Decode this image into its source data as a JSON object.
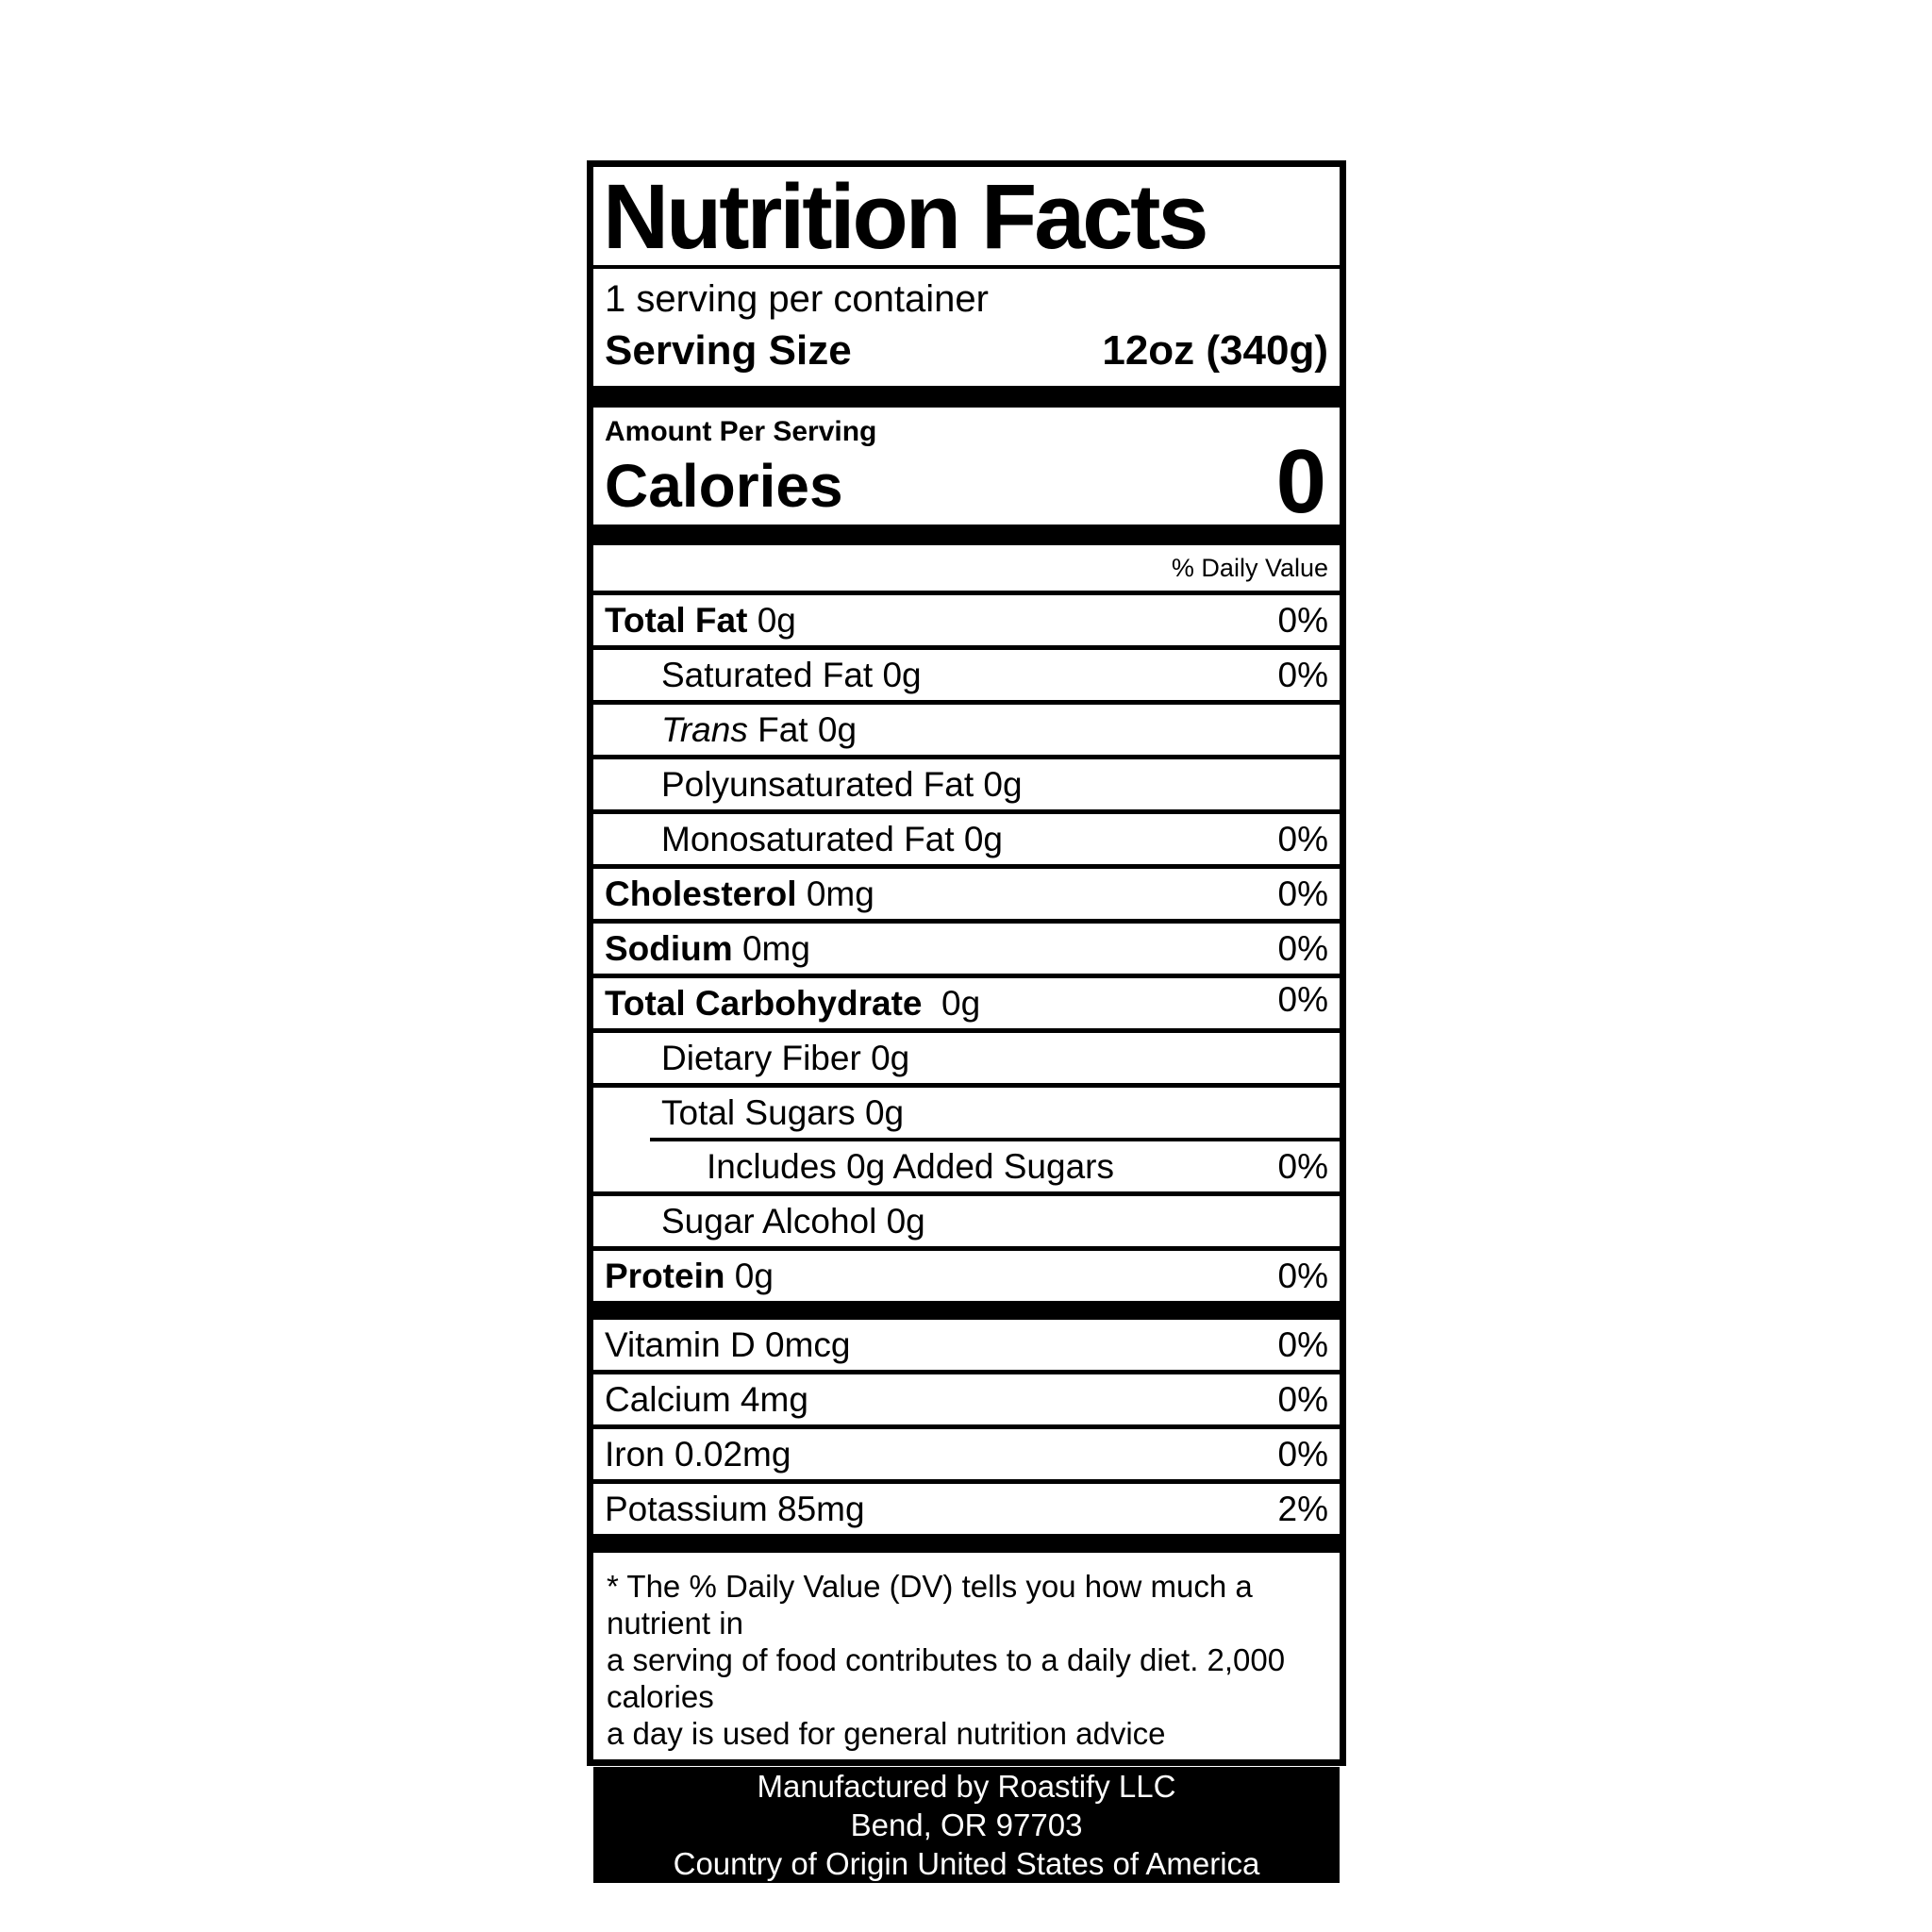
{
  "label": {
    "title": "Nutrition Facts",
    "servings_per_container": "1 serving per container",
    "serving_size_label": "Serving Size",
    "serving_size_value": "12oz (340g)",
    "amount_per_serving": "Amount Per Serving",
    "calories_label": "Calories",
    "calories_value": "0",
    "daily_value_header": "% Daily Value",
    "rows": [
      {
        "name": "Total Fat",
        "amount": "0g",
        "dv": "0%"
      },
      {
        "name": "Saturated Fat",
        "amount": "0g",
        "dv": "0%"
      },
      {
        "name": "Trans",
        "rest": "Fat",
        "amount": "0g",
        "dv": ""
      },
      {
        "name": "Polyunsaturated Fat",
        "amount": "0g",
        "dv": ""
      },
      {
        "name": "Monosaturated Fat",
        "amount": "0g",
        "dv": "0%"
      },
      {
        "name": "Cholesterol",
        "amount": "0mg",
        "dv": "0%"
      },
      {
        "name": "Sodium",
        "amount": "0mg",
        "dv": "0%"
      },
      {
        "name": "Total Carbohydrate",
        "amount": "0g",
        "dv": "0%"
      },
      {
        "name": "Dietary Fiber",
        "amount": "0g",
        "dv": ""
      },
      {
        "name": "Total Sugars",
        "amount": "0g",
        "dv": ""
      },
      {
        "name": "Includes 0g Added Sugars",
        "amount": "",
        "dv": "0%"
      },
      {
        "name": "Sugar Alcohol",
        "amount": "0g",
        "dv": ""
      },
      {
        "name": "Protein",
        "amount": "0g",
        "dv": "0%"
      }
    ],
    "vitamins": [
      {
        "name": "Vitamin D",
        "amount": "0mcg",
        "dv": "0%"
      },
      {
        "name": "Calcium",
        "amount": "4mg",
        "dv": "0%"
      },
      {
        "name": "Iron",
        "amount": "0.02mg",
        "dv": "0%"
      },
      {
        "name": "Potassium",
        "amount": "85mg",
        "dv": "2%"
      }
    ],
    "footnote_lines": [
      "* The % Daily Value (DV) tells you how much a nutrient in",
      "a serving of food contributes to a daily diet. 2,000 calories",
      "a day is used for general nutrition advice"
    ],
    "footer_lines": [
      "Manufactured by Roastify LLC",
      "Bend, OR 97703",
      "Country of Origin United States of America"
    ],
    "colors": {
      "ink": "#000000",
      "paper": "#ffffff"
    }
  }
}
